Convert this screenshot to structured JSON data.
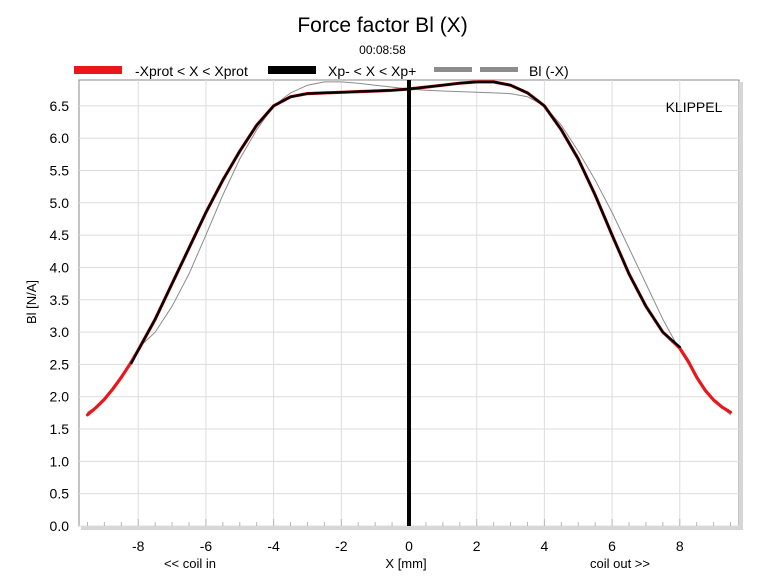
{
  "chart_data": {
    "type": "line",
    "title": "Force factor Bl (X)",
    "subtitle": "00:08:58",
    "xlabel": "X [mm]",
    "ylabel": "Bl [N/A]",
    "x_left_note": "<< coil in",
    "x_right_note": "coil out >>",
    "watermark": "KLIPPEL",
    "xlim": [
      -9.75,
      9.75
    ],
    "ylim": [
      0,
      6.9
    ],
    "x_ticks": [
      -8,
      -6,
      -4,
      -2,
      0,
      2,
      4,
      6,
      8
    ],
    "y_ticks": [
      0.0,
      0.5,
      1.0,
      1.5,
      2.0,
      2.5,
      3.0,
      3.5,
      4.0,
      4.5,
      5.0,
      5.5,
      6.0,
      6.5
    ],
    "x_tick_labels": [
      "-8",
      "-6",
      "-4",
      "-2",
      "0",
      "2",
      "4",
      "6",
      "8"
    ],
    "y_tick_labels": [
      "0.0",
      "0.5",
      "1.0",
      "1.5",
      "2.0",
      "2.5",
      "3.0",
      "3.5",
      "4.0",
      "4.5",
      "5.0",
      "5.5",
      "6.0",
      "6.5"
    ],
    "grid": true,
    "legend_position": "top",
    "colors": {
      "prot": "#e8171b",
      "xp": "#000000",
      "mirror": "#8c8c8c",
      "center": "#000000",
      "grid": "#dddddd"
    },
    "series": [
      {
        "name": "-Xprot < X < Xprot",
        "style": "thick-red",
        "x": [
          -9.5,
          -9.25,
          -9.0,
          -8.75,
          -8.5,
          -8.25,
          -8.0,
          -7.5,
          -7.0,
          -6.5,
          -6.0,
          -5.5,
          -5.0,
          -4.5,
          -4.0,
          -3.5,
          -3.0,
          -2.5,
          -2.0,
          -1.5,
          -1.0,
          -0.5,
          0.0,
          0.5,
          1.0,
          1.5,
          2.0,
          2.5,
          3.0,
          3.5,
          4.0,
          4.5,
          5.0,
          5.5,
          6.0,
          6.5,
          7.0,
          7.5,
          8.0,
          8.25,
          8.5,
          8.75,
          9.0,
          9.25,
          9.5
        ],
        "y": [
          1.72,
          1.83,
          1.96,
          2.12,
          2.3,
          2.5,
          2.72,
          3.2,
          3.75,
          4.3,
          4.85,
          5.35,
          5.8,
          6.2,
          6.5,
          6.64,
          6.69,
          6.7,
          6.71,
          6.72,
          6.73,
          6.74,
          6.76,
          6.79,
          6.82,
          6.85,
          6.87,
          6.87,
          6.82,
          6.7,
          6.5,
          6.13,
          5.68,
          5.12,
          4.5,
          3.9,
          3.4,
          3.0,
          2.75,
          2.55,
          2.3,
          2.1,
          1.95,
          1.84,
          1.76
        ]
      },
      {
        "name": "Xp- < X < Xp+",
        "style": "thick-black",
        "x": [
          -8.2,
          -8.0,
          -7.5,
          -7.0,
          -6.5,
          -6.0,
          -5.5,
          -5.0,
          -4.5,
          -4.0,
          -3.5,
          -3.0,
          -2.5,
          -2.0,
          -1.5,
          -1.0,
          -0.5,
          0.0,
          0.5,
          1.0,
          1.5,
          2.0,
          2.5,
          3.0,
          3.5,
          4.0,
          4.5,
          5.0,
          5.5,
          6.0,
          6.5,
          7.0,
          7.5,
          8.0
        ],
        "y": [
          2.52,
          2.72,
          3.2,
          3.75,
          4.3,
          4.85,
          5.35,
          5.8,
          6.2,
          6.5,
          6.64,
          6.69,
          6.7,
          6.71,
          6.72,
          6.73,
          6.74,
          6.76,
          6.79,
          6.82,
          6.85,
          6.87,
          6.87,
          6.82,
          6.7,
          6.5,
          6.13,
          5.68,
          5.12,
          4.5,
          3.9,
          3.4,
          3.0,
          2.77
        ]
      },
      {
        "name": "Bl (-X)",
        "style": "thin-gray",
        "x": [
          -9.5,
          -9.25,
          -9.0,
          -8.75,
          -8.5,
          -8.0,
          -7.5,
          -7.0,
          -6.5,
          -6.0,
          -5.5,
          -5.0,
          -4.5,
          -4.0,
          -3.5,
          -3.0,
          -2.5,
          -2.0,
          -1.5,
          -1.0,
          -0.5,
          0.0,
          0.5,
          1.0,
          1.5,
          2.0,
          2.5,
          3.0,
          3.5,
          4.0,
          4.5,
          5.0,
          5.5,
          6.0,
          6.5,
          7.0,
          7.5,
          8.0,
          8.5,
          8.75,
          9.0,
          9.25,
          9.5
        ],
        "y": [
          1.76,
          1.84,
          1.95,
          2.1,
          2.3,
          2.75,
          3.0,
          3.4,
          3.9,
          4.5,
          5.12,
          5.68,
          6.13,
          6.5,
          6.7,
          6.82,
          6.87,
          6.87,
          6.85,
          6.82,
          6.79,
          6.76,
          6.74,
          6.73,
          6.72,
          6.71,
          6.7,
          6.69,
          6.64,
          6.5,
          6.2,
          5.8,
          5.35,
          4.85,
          4.3,
          3.75,
          3.2,
          2.72,
          2.3,
          2.12,
          1.96,
          1.83,
          1.72
        ]
      }
    ]
  }
}
